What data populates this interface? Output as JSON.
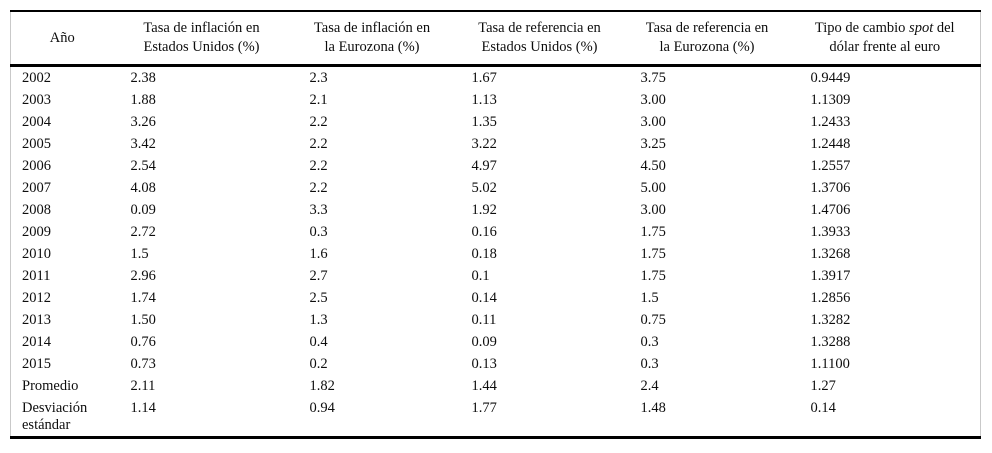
{
  "page": {
    "background_color": "#ffffff",
    "text_color": "#0d0d0d",
    "rule_color": "#000000",
    "edge_line_color": "#c9c9c9"
  },
  "table": {
    "columns": [
      {
        "id": "ano",
        "lines": [
          "Año"
        ]
      },
      {
        "id": "inflacion-us",
        "lines": [
          "Tasa de inflación en",
          "Estados Unidos (%)"
        ]
      },
      {
        "id": "inflacion-ez",
        "lines": [
          "Tasa de inflación en",
          "la Eurozona (%)"
        ]
      },
      {
        "id": "referencia-us",
        "lines": [
          "Tasa de referencia en",
          "Estados Unidos (%)"
        ]
      },
      {
        "id": "referencia-ez",
        "lines": [
          "Tasa de referencia en",
          "la Eurozona (%)"
        ]
      },
      {
        "id": "tipo-cambio-spot",
        "lines": [
          "Tipo de cambio *spot* del",
          "dólar frente al euro"
        ]
      }
    ],
    "rows": [
      [
        "2002",
        "2.38",
        "2.3",
        "1.67",
        "3.75",
        "0.9449"
      ],
      [
        "2003",
        "1.88",
        "2.1",
        "1.13",
        "3.00",
        "1.1309"
      ],
      [
        "2004",
        "3.26",
        "2.2",
        "1.35",
        "3.00",
        "1.2433"
      ],
      [
        "2005",
        "3.42",
        "2.2",
        "3.22",
        "3.25",
        "1.2448"
      ],
      [
        "2006",
        "2.54",
        "2.2",
        "4.97",
        "4.50",
        "1.2557"
      ],
      [
        "2007",
        "4.08",
        "2.2",
        "5.02",
        "5.00",
        "1.3706"
      ],
      [
        "2008",
        "0.09",
        "3.3",
        "1.92",
        "3.00",
        "1.4706"
      ],
      [
        "2009",
        "2.72",
        "0.3",
        "0.16",
        "1.75",
        "1.3933"
      ],
      [
        "2010",
        "1.5",
        "1.6",
        "0.18",
        "1.75",
        "1.3268"
      ],
      [
        "2011",
        "2.96",
        "2.7",
        "0.1",
        "1.75",
        "1.3917"
      ],
      [
        "2012",
        "1.74",
        "2.5",
        "0.14",
        "1.5",
        "1.2856"
      ],
      [
        "2013",
        "1.50",
        "1.3",
        "0.11",
        "0.75",
        "1.3282"
      ],
      [
        "2014",
        "0.76",
        "0.4",
        "0.09",
        "0.3",
        "1.3288"
      ],
      [
        "2015",
        "0.73",
        "0.2",
        "0.13",
        "0.3",
        "1.1100"
      ],
      [
        "Promedio",
        "2.11",
        "1.82",
        "1.44",
        "2.4",
        "1.27"
      ],
      [
        "Desviación estándar",
        "1.14",
        "0.94",
        "1.77",
        "1.48",
        "0.14"
      ]
    ]
  }
}
